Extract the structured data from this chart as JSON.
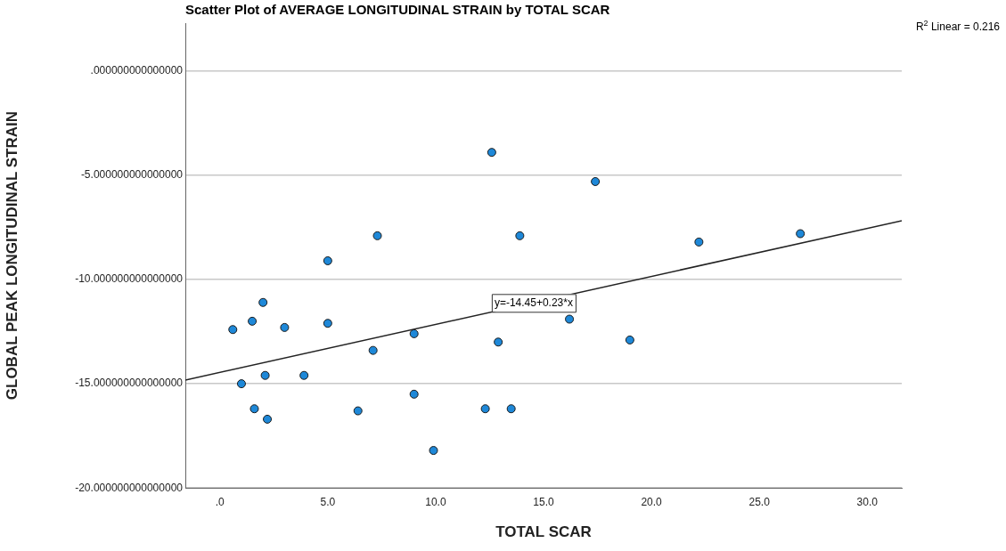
{
  "chart_data": {
    "type": "scatter",
    "title": "Scatter Plot of AVERAGE LONGITUDINAL STRAIN by TOTAL SCAR",
    "xlabel": "TOTAL SCAR",
    "ylabel": "GLOBAL PEAK LONGITUDINAL STRAIN",
    "annotations": [
      "R$^{2}$ Linear = 0.216",
      {
        "text": "y=-14.45+0.23*x",
        "x": 12.6,
        "y": -11.55
      }
    ],
    "series": [
      {
        "color": "#1e88d8",
        "x": [
          0.6,
          1.0,
          1.5,
          1.6,
          2.0,
          2.1,
          2.2,
          3.0,
          3.9,
          5.0,
          5.0,
          6.4,
          7.1,
          7.3,
          9.0,
          9.0,
          9.9,
          12.3,
          12.6,
          12.9,
          13.5,
          13.9,
          16.2,
          17.4,
          19.0,
          22.2,
          26.9
        ],
        "values": [
          -12.4,
          -15.0,
          -12.0,
          -16.2,
          -11.1,
          -14.6,
          -16.7,
          -12.3,
          -14.6,
          -12.1,
          -9.1,
          -16.3,
          -13.4,
          -7.9,
          -12.6,
          -15.5,
          -18.2,
          -16.2,
          -3.9,
          -13.0,
          -16.2,
          -7.9,
          -11.9,
          -5.3,
          -12.9,
          -8.2,
          -7.8
        ]
      },
      {
        "type": "line",
        "marker": "none",
        "color": "#222222",
        "x": [
          -1.6,
          31.6
        ],
        "values": [
          -14.82,
          -7.18
        ]
      }
    ],
    "xlim": [
      -1.6,
      31.6
    ],
    "ylim": [
      -20,
      2.3
    ],
    "xticks": [
      {
        "value": 0,
        "label": ".0"
      },
      {
        "value": 5,
        "label": "5.0"
      },
      {
        "value": 10,
        "label": "10.0"
      },
      {
        "value": 15,
        "label": "15.0"
      },
      {
        "value": 20,
        "label": "20.0"
      },
      {
        "value": 25,
        "label": "25.0"
      },
      {
        "value": 30,
        "label": "30.0"
      }
    ],
    "yticks": [
      {
        "value": -20,
        "label": "-20.000000000000000"
      },
      {
        "value": -15,
        "label": "-15.000000000000000"
      },
      {
        "value": -10,
        "label": "-10.000000000000000"
      },
      {
        "value": -5,
        "label": "-5.000000000000000"
      },
      {
        "value": 0,
        "label": ".000000000000000"
      }
    ],
    "grid": "y",
    "legend": false,
    "marker": "circle",
    "line_style": "solid"
  }
}
